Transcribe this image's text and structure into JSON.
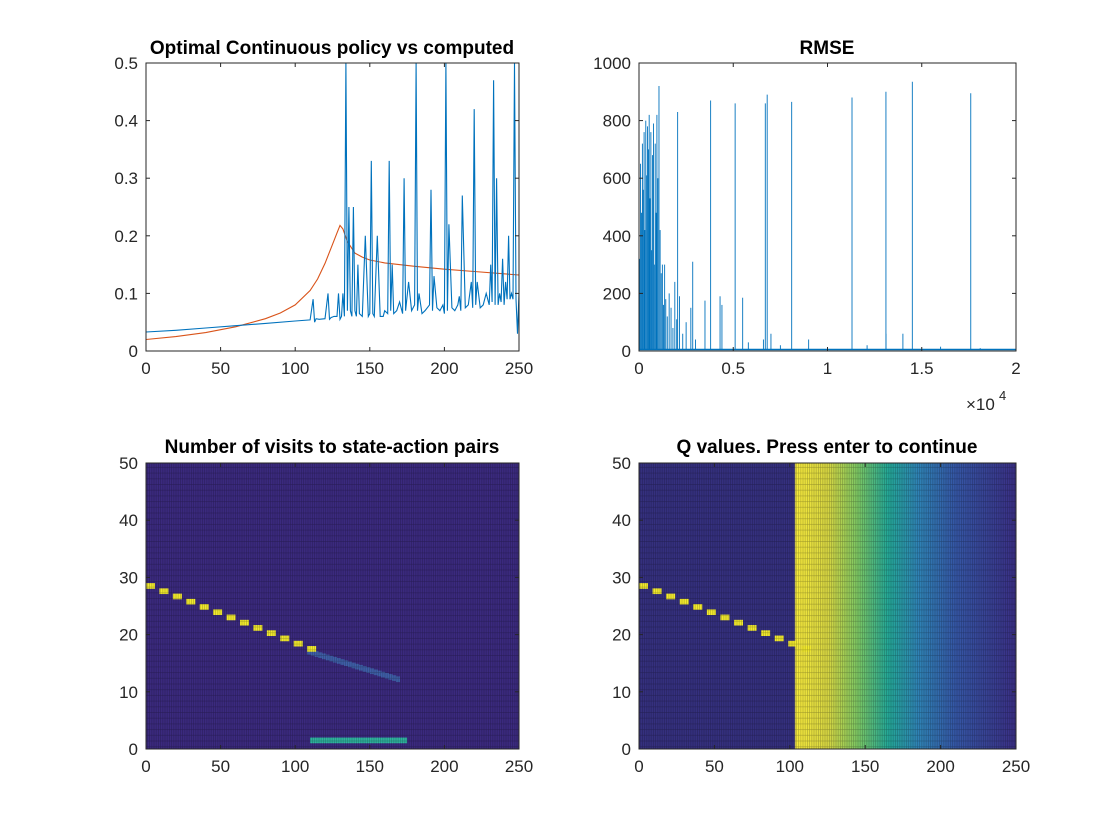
{
  "figure": {
    "background": "#ffffff",
    "colors": {
      "blue": "#0072BD",
      "orange": "#D95319",
      "axis": "#262626"
    }
  },
  "chart_data": [
    {
      "type": "line",
      "title": "Optimal Continuous policy vs computed",
      "xlim": [
        0,
        250
      ],
      "ylim": [
        0,
        0.5
      ],
      "xticks": [
        "0",
        "50",
        "100",
        "150",
        "200",
        "250"
      ],
      "yticks": [
        "0",
        "0.1",
        "0.2",
        "0.3",
        "0.4",
        "0.5"
      ],
      "series": [
        {
          "color": "#D95319",
          "x": [
            0,
            20,
            40,
            60,
            80,
            90,
            100,
            110,
            115,
            120,
            125,
            128,
            130,
            132,
            135,
            140,
            145,
            150,
            160,
            180,
            200,
            220,
            250
          ],
          "y": [
            0.02,
            0.025,
            0.032,
            0.042,
            0.056,
            0.066,
            0.08,
            0.105,
            0.125,
            0.152,
            0.185,
            0.205,
            0.218,
            0.212,
            0.19,
            0.17,
            0.163,
            0.158,
            0.153,
            0.147,
            0.142,
            0.138,
            0.132
          ]
        },
        {
          "color": "#0072BD",
          "x": [
            0,
            20,
            40,
            60,
            80,
            100,
            110,
            112,
            113,
            114,
            116,
            120,
            122,
            123,
            124,
            126,
            128,
            129,
            130,
            131,
            132,
            133,
            134,
            135,
            136,
            137,
            138,
            139,
            140,
            141,
            142,
            143,
            145,
            147,
            149,
            150,
            151,
            152,
            153,
            155,
            157,
            159,
            160,
            162,
            163,
            164,
            165,
            166,
            168,
            170,
            172,
            173,
            174,
            176,
            178,
            180,
            181,
            182,
            183,
            185,
            187,
            190,
            191,
            192,
            193,
            195,
            197,
            199,
            200,
            201,
            202,
            203,
            205,
            207,
            209,
            210,
            211,
            212,
            214,
            216,
            218,
            219,
            220,
            221,
            222,
            224,
            226,
            228,
            230,
            231,
            232,
            233,
            234,
            235,
            236,
            237,
            238,
            239,
            240,
            241,
            242,
            243,
            244,
            245,
            246,
            247,
            248,
            249,
            250
          ],
          "y": [
            0.033,
            0.036,
            0.04,
            0.044,
            0.048,
            0.052,
            0.054,
            0.09,
            0.05,
            0.056,
            0.055,
            0.056,
            0.1,
            0.055,
            0.058,
            0.06,
            0.06,
            0.1,
            0.055,
            0.06,
            0.1,
            0.06,
            0.5,
            0.07,
            0.25,
            0.07,
            0.06,
            0.25,
            0.07,
            0.06,
            0.15,
            0.065,
            0.06,
            0.2,
            0.06,
            0.065,
            0.33,
            0.065,
            0.06,
            0.2,
            0.06,
            0.06,
            0.07,
            0.065,
            0.33,
            0.07,
            0.15,
            0.065,
            0.07,
            0.085,
            0.065,
            0.3,
            0.07,
            0.12,
            0.07,
            0.08,
            0.5,
            0.07,
            0.1,
            0.065,
            0.07,
            0.08,
            0.28,
            0.07,
            0.13,
            0.075,
            0.07,
            0.08,
            0.065,
            0.5,
            0.07,
            0.22,
            0.075,
            0.07,
            0.08,
            0.095,
            0.07,
            0.27,
            0.075,
            0.08,
            0.12,
            0.075,
            0.42,
            0.08,
            0.12,
            0.075,
            0.08,
            0.1,
            0.08,
            0.15,
            0.085,
            0.47,
            0.08,
            0.3,
            0.08,
            0.1,
            0.085,
            0.16,
            0.08,
            0.12,
            0.09,
            0.2,
            0.09,
            0.1,
            0.09,
            0.5,
            0.09,
            0.03,
            0.1
          ]
        }
      ]
    },
    {
      "type": "line",
      "title": "RMSE",
      "xlim": [
        0,
        2
      ],
      "ylim": [
        0,
        1000
      ],
      "xticks": [
        "0",
        "0.5",
        "1",
        "1.5",
        "2"
      ],
      "yticks": [
        "0",
        "200",
        "400",
        "600",
        "800",
        "1000"
      ],
      "x_multiplier": "×10^4",
      "series": [
        {
          "color": "#0072BD",
          "spikes": [
            {
              "x": 0.003,
              "y": 320
            },
            {
              "x": 0.008,
              "y": 650
            },
            {
              "x": 0.013,
              "y": 480
            },
            {
              "x": 0.018,
              "y": 720
            },
            {
              "x": 0.022,
              "y": 560
            },
            {
              "x": 0.027,
              "y": 760
            },
            {
              "x": 0.031,
              "y": 420
            },
            {
              "x": 0.036,
              "y": 800
            },
            {
              "x": 0.041,
              "y": 610
            },
            {
              "x": 0.045,
              "y": 780
            },
            {
              "x": 0.05,
              "y": 700
            },
            {
              "x": 0.054,
              "y": 820
            },
            {
              "x": 0.058,
              "y": 530
            },
            {
              "x": 0.063,
              "y": 760
            },
            {
              "x": 0.067,
              "y": 350
            },
            {
              "x": 0.072,
              "y": 680
            },
            {
              "x": 0.077,
              "y": 790
            },
            {
              "x": 0.081,
              "y": 300
            },
            {
              "x": 0.086,
              "y": 720
            },
            {
              "x": 0.091,
              "y": 480
            },
            {
              "x": 0.095,
              "y": 820
            },
            {
              "x": 0.1,
              "y": 600
            },
            {
              "x": 0.106,
              "y": 920
            },
            {
              "x": 0.112,
              "y": 420
            },
            {
              "x": 0.118,
              "y": 270
            },
            {
              "x": 0.124,
              "y": 300
            },
            {
              "x": 0.13,
              "y": 160
            },
            {
              "x": 0.136,
              "y": 300
            },
            {
              "x": 0.142,
              "y": 180
            },
            {
              "x": 0.15,
              "y": 120
            },
            {
              "x": 0.16,
              "y": 200
            },
            {
              "x": 0.17,
              "y": 150
            },
            {
              "x": 0.18,
              "y": 80
            },
            {
              "x": 0.19,
              "y": 240
            },
            {
              "x": 0.2,
              "y": 110
            },
            {
              "x": 0.215,
              "y": 190
            },
            {
              "x": 0.232,
              "y": 60
            },
            {
              "x": 0.25,
              "y": 100
            },
            {
              "x": 0.275,
              "y": 150
            },
            {
              "x": 0.285,
              "y": 310
            },
            {
              "x": 0.3,
              "y": 40
            },
            {
              "x": 0.35,
              "y": 175
            },
            {
              "x": 0.43,
              "y": 190
            },
            {
              "x": 0.44,
              "y": 160
            },
            {
              "x": 0.55,
              "y": 185
            },
            {
              "x": 0.58,
              "y": 30
            },
            {
              "x": 0.66,
              "y": 40
            },
            {
              "x": 0.7,
              "y": 60
            },
            {
              "x": 0.75,
              "y": 20
            },
            {
              "x": 0.9,
              "y": 40
            },
            {
              "x": 1.21,
              "y": 20
            },
            {
              "x": 1.31,
              "y": 60
            },
            {
              "x": 1.4,
              "y": 60
            },
            {
              "x": 1.6,
              "y": 15
            },
            {
              "x": 1.81,
              "y": 10
            },
            {
              "x": 0.205,
              "y": 830
            },
            {
              "x": 0.38,
              "y": 870
            },
            {
              "x": 0.51,
              "y": 860
            },
            {
              "x": 0.67,
              "y": 860
            },
            {
              "x": 0.68,
              "y": 890
            },
            {
              "x": 0.81,
              "y": 865
            },
            {
              "x": 1.13,
              "y": 880
            },
            {
              "x": 1.31,
              "y": 900
            },
            {
              "x": 1.45,
              "y": 935
            },
            {
              "x": 1.76,
              "y": 895
            }
          ],
          "baseline": 5
        }
      ]
    },
    {
      "type": "heatmap",
      "title": "Number of visits to state-action pairs",
      "xlim": [
        0,
        250
      ],
      "ylim": [
        0,
        50
      ],
      "xticks": [
        "0",
        "50",
        "100",
        "150",
        "200",
        "250"
      ],
      "yticks": [
        "0",
        "10",
        "20",
        "30",
        "40",
        "50"
      ],
      "base_color": "#3b2a7f",
      "highlight_color": "#f2ea2e",
      "visited_path": {
        "x_start": 0,
        "y_start": 28.5,
        "x_end": 108,
        "y_end": 17.5
      },
      "secondary_band": {
        "x_start": 110,
        "x_end": 175,
        "y": 1.5,
        "color": "#2fb4a0"
      },
      "faint_band": {
        "x_start": 108,
        "x_end": 170,
        "y_start": 17,
        "y_end": 12,
        "color": "#3f5fa8"
      }
    },
    {
      "type": "heatmap",
      "title": "Q values. Press enter to continue",
      "xlim": [
        0,
        250
      ],
      "ylim": [
        0,
        50
      ],
      "xticks": [
        "0",
        "50",
        "100",
        "150",
        "200",
        "250"
      ],
      "yticks": [
        "0",
        "10",
        "20",
        "30",
        "40",
        "50"
      ],
      "base_color": "#35307f",
      "highlight_color": "#f2ea2e",
      "gradient": [
        {
          "x": 0,
          "color": "#35307f"
        },
        {
          "x": 103,
          "color": "#35307f"
        },
        {
          "x": 104,
          "color": "#f6e93c"
        },
        {
          "x": 125,
          "color": "#d7d642"
        },
        {
          "x": 145,
          "color": "#7cc764"
        },
        {
          "x": 165,
          "color": "#24a897"
        },
        {
          "x": 185,
          "color": "#2f83b5"
        },
        {
          "x": 210,
          "color": "#3556a5"
        },
        {
          "x": 250,
          "color": "#3a2f85"
        }
      ],
      "visited_path": {
        "x_start": 0,
        "y_start": 28.5,
        "x_end": 108,
        "y_end": 17.5
      }
    }
  ]
}
